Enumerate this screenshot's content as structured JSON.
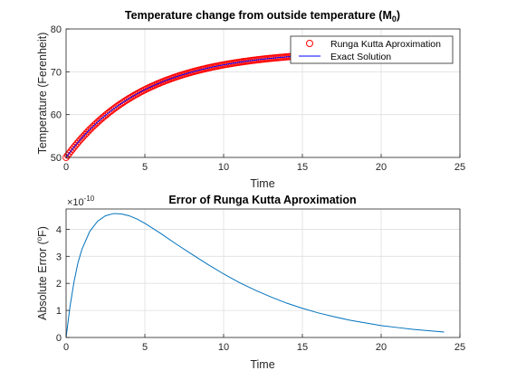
{
  "chart_data": [
    {
      "type": "scatter",
      "title": "Temperature change from outside temperature (M",
      "title_sub": "0",
      "title_close": ")",
      "xlabel": "Time",
      "ylabel": "Temperature (Ferenheit)",
      "xlim": [
        0,
        25
      ],
      "ylim": [
        50,
        80
      ],
      "xticks": [
        0,
        5,
        10,
        15,
        20,
        25
      ],
      "yticks": [
        50,
        60,
        70,
        80
      ],
      "grid": true,
      "legend_placement": "top-right",
      "series": [
        {
          "name": "Runga Kutta Aproximation",
          "marker": "circle",
          "color": "#ff0000",
          "x_range": [
            0,
            14.5
          ],
          "x_step": 0.1,
          "model": {
            "T_env": 75,
            "T0": 50,
            "k": 0.2
          }
        },
        {
          "name": "Exact Solution",
          "line": "solid",
          "color": "#0000ff",
          "x_range": [
            0,
            14.5
          ],
          "model": {
            "T_env": 75,
            "T0": 50,
            "k": 0.2
          }
        }
      ]
    },
    {
      "type": "line",
      "title": "Error of Runga Kutta Aproximation",
      "xlabel": "Time",
      "ylabel": "Absolute Error (",
      "ylabel_sup": "o",
      "ylabel_close": "F)",
      "exponent_base": "×10",
      "exponent_power": "-10",
      "xlim": [
        0,
        25
      ],
      "ylim": [
        0,
        4.75
      ],
      "xticks": [
        0,
        5,
        10,
        15,
        20,
        25
      ],
      "yticks": [
        0,
        1,
        2,
        3,
        4
      ],
      "grid": true,
      "series": [
        {
          "color": "#0072bd",
          "x": [
            0,
            0.25,
            0.5,
            0.75,
            1,
            1.5,
            2,
            2.5,
            3,
            3.5,
            4,
            4.5,
            5,
            6,
            7,
            8,
            9,
            10,
            11,
            12,
            13,
            14,
            15,
            16,
            17,
            18,
            19,
            20,
            21,
            22,
            23,
            24
          ],
          "y": [
            0,
            1.15,
            2.05,
            2.75,
            3.25,
            3.92,
            4.3,
            4.5,
            4.58,
            4.57,
            4.5,
            4.38,
            4.22,
            3.85,
            3.45,
            3.07,
            2.7,
            2.35,
            2.03,
            1.75,
            1.5,
            1.27,
            1.08,
            0.91,
            0.77,
            0.64,
            0.54,
            0.44,
            0.37,
            0.3,
            0.25,
            0.2
          ]
        }
      ]
    }
  ]
}
